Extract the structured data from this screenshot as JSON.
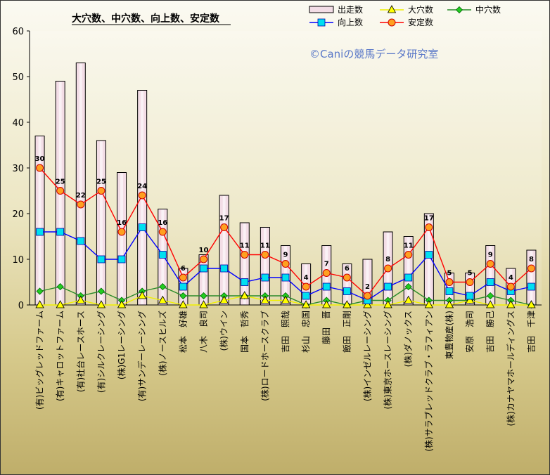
{
  "chart_data": {
    "type": "bar",
    "title": "大穴数、中穴数、向上数、安定数",
    "copyright": "©Caniの競馬データ研究室",
    "ylim": [
      0,
      60
    ],
    "yticks": [
      0,
      10,
      20,
      30,
      40,
      50,
      60
    ],
    "grid": false,
    "legend_position": "top-right",
    "categories": [
      "(有)ビッグレッドファーム",
      "(有)キャロットファーム",
      "(有)社台レースホース",
      "(有)シルクレーシング",
      "(株)G1レーシング",
      "(有)サンデーレーシング",
      "(株)ノースヒルズ",
      "松本　好雄",
      "八木　良司",
      "(株)ウイン",
      "国本　哲秀",
      "(株)ロードホースクラブ",
      "吉田　照哉",
      "杉山　忠国",
      "藤田　晋",
      "飯田　正剛",
      "(株)インゼルレーシング",
      "(株)東京ホースレーシング",
      "(株)ダノックス",
      "(株)サラブレッドクラブ・ラフィアン",
      "東豊物産(株)",
      "安原　浩司",
      "吉田　勝己",
      "(株)カナヤマホールディングス",
      "吉田　千津"
    ],
    "series": [
      {
        "name": "出走数",
        "type": "bar",
        "color": "#f3dde6",
        "values": [
          37,
          49,
          53,
          36,
          29,
          47,
          21,
          8,
          11,
          24,
          18,
          17,
          13,
          9,
          13,
          9,
          10,
          16,
          15,
          20,
          7,
          7,
          13,
          8,
          12
        ]
      },
      {
        "name": "大穴数",
        "type": "line",
        "color": "#f0f000",
        "values": [
          0,
          0,
          1,
          0,
          0,
          2,
          1,
          0,
          0,
          1,
          2,
          1,
          1,
          0,
          0,
          0,
          0,
          0,
          1,
          0,
          0,
          1,
          0,
          0,
          0
        ]
      },
      {
        "name": "中穴数",
        "type": "line",
        "color": "#2a8a2a",
        "values": [
          3,
          4,
          2,
          3,
          1,
          3,
          4,
          2,
          2,
          2,
          2,
          2,
          2,
          0,
          1,
          0,
          1,
          1,
          4,
          1,
          1,
          1,
          2,
          1,
          0
        ]
      },
      {
        "name": "向上数",
        "type": "line",
        "color": "#0000ff",
        "values": [
          16,
          16,
          14,
          10,
          10,
          17,
          11,
          4,
          8,
          8,
          5,
          6,
          6,
          2,
          4,
          3,
          1,
          4,
          6,
          11,
          3,
          2,
          5,
          3,
          4
        ]
      },
      {
        "name": "安定数",
        "type": "line",
        "color": "#ff0000",
        "values": [
          30,
          25,
          22,
          25,
          16,
          24,
          16,
          6,
          10,
          17,
          11,
          11,
          9,
          4,
          7,
          6,
          2,
          8,
          11,
          17,
          5,
          5,
          9,
          4,
          8
        ]
      }
    ]
  }
}
